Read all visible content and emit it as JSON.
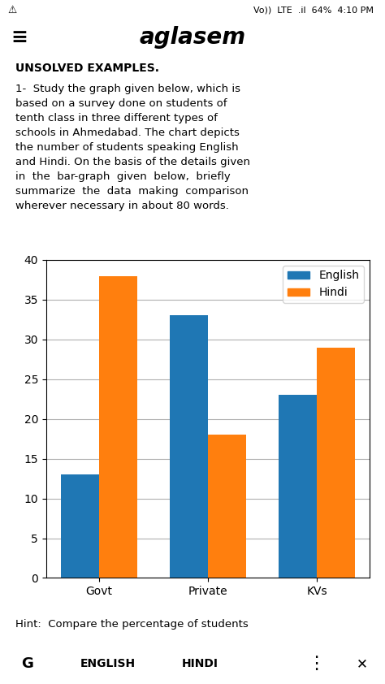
{
  "chart_data": {
    "type": "bar",
    "annotations": [
      "⚠",
      "Vo))  LTE  .il  64%  4:10 PM",
      "≡",
      "aglasem",
      "UNSOLVED EXAMPLES.",
      "1-  Study the graph given below, which is\nbased on a survey done on students of\ntenth class in three different types of\nschools in Ahmedabad. The chart depicts\nthe number of students speaking English\nand Hindi. On the basis of the details given\nin  the  bar-graph  given  below,  briefly\nsummarize  the  data  making  comparison\nwherever necessary in about 80 words.",
      "Hint:  Compare the percentage of students",
      "G",
      "ENGLISH",
      "HINDI",
      "⋮",
      "✕"
    ],
    "categories": [
      "Govt",
      "Private",
      "KVs"
    ],
    "series": [
      {
        "name": "English",
        "values": [
          13,
          33,
          23
        ]
      },
      {
        "name": "Hindi",
        "values": [
          38,
          18,
          29
        ]
      }
    ],
    "ylim": [
      0,
      40
    ],
    "yticks": [
      0,
      5,
      10,
      15,
      20,
      25,
      30,
      35,
      40
    ],
    "grid": true,
    "legend": "upper right"
  }
}
